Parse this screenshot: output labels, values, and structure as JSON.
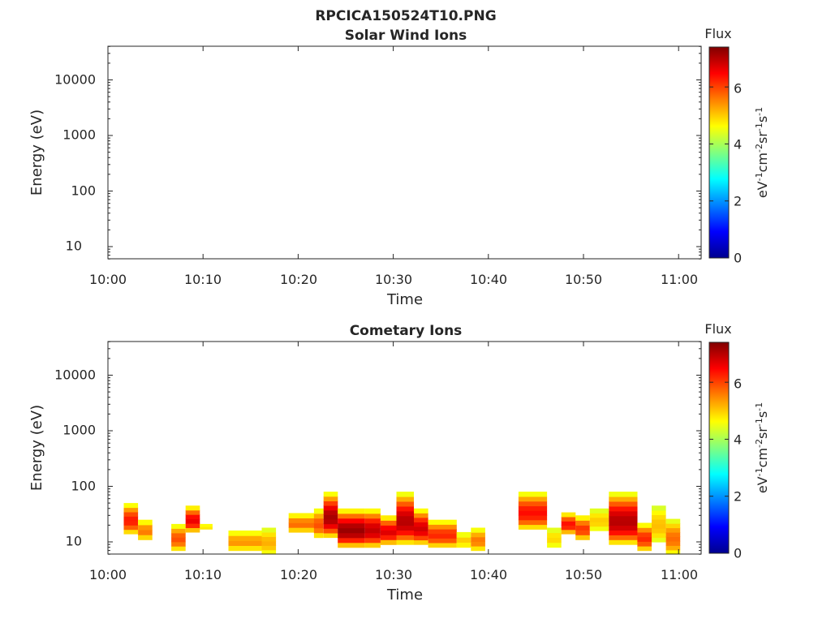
{
  "figure_title": "RPCICA150524T10.PNG",
  "chart_data": [
    {
      "type": "heatmap",
      "title": "Solar Wind Ions",
      "xlabel": "Time",
      "ylabel": "Energy (eV)",
      "x_ticks": [
        "10:00",
        "10:10",
        "10:20",
        "10:30",
        "10:40",
        "10:50",
        "11:00"
      ],
      "y_ticks": [
        "10",
        "100",
        "1000",
        "10000"
      ],
      "y_scale": "log",
      "ylim": [
        6,
        45000
      ],
      "xlim": [
        "10:00",
        "11:02"
      ],
      "colorbar": {
        "label": "Flux",
        "unit": "eV-1cm-2sr-1s-1",
        "range": [
          0,
          7.4
        ],
        "ticks": [
          "0",
          "2",
          "4",
          "6"
        ]
      },
      "cells": []
    },
    {
      "type": "heatmap",
      "title": "Cometary Ions",
      "xlabel": "Time",
      "ylabel": "Energy (eV)",
      "x_ticks": [
        "10:00",
        "10:10",
        "10:20",
        "10:30",
        "10:40",
        "10:50",
        "11:00"
      ],
      "y_ticks": [
        "10",
        "100",
        "1000",
        "10000"
      ],
      "y_scale": "log",
      "ylim": [
        6,
        45000
      ],
      "xlim": [
        "10:00",
        "11:02"
      ],
      "colorbar": {
        "label": "Flux",
        "unit": "eV-1cm-2sr-1s-1",
        "range": [
          0,
          7.4
        ],
        "ticks": [
          "0",
          "2",
          "4",
          "6"
        ]
      },
      "columns": [
        {
          "t0": "10:01:40",
          "t1": "10:03:10",
          "e_lo": 14,
          "e_hi": 50,
          "peak": 6.3
        },
        {
          "t0": "10:03:10",
          "t1": "10:04:40",
          "e_lo": 11,
          "e_hi": 25,
          "peak": 5.6
        },
        {
          "t0": "10:06:40",
          "t1": "10:08:10",
          "e_lo": 7,
          "e_hi": 21,
          "peak": 5.9
        },
        {
          "t0": "10:08:10",
          "t1": "10:09:40",
          "e_lo": 15,
          "e_hi": 45,
          "peak": 6.6
        },
        {
          "t0": "10:09:40",
          "t1": "10:11:00",
          "e_lo": 17,
          "e_hi": 21,
          "peak": 4.9
        },
        {
          "t0": "10:12:40",
          "t1": "10:16:10",
          "e_lo": 7,
          "e_hi": 16,
          "peak": 5.4
        },
        {
          "t0": "10:16:10",
          "t1": "10:17:40",
          "e_lo": 6,
          "e_hi": 18,
          "peak": 5.2
        },
        {
          "t0": "10:19:00",
          "t1": "10:21:40",
          "e_lo": 15,
          "e_hi": 33,
          "peak": 5.7
        },
        {
          "t0": "10:21:40",
          "t1": "10:22:40",
          "e_lo": 12,
          "e_hi": 40,
          "peak": 5.9
        },
        {
          "t0": "10:22:40",
          "t1": "10:24:10",
          "e_lo": 12,
          "e_hi": 80,
          "peak": 7.1
        },
        {
          "t0": "10:24:10",
          "t1": "10:27:00",
          "e_lo": 8,
          "e_hi": 40,
          "peak": 7.2
        },
        {
          "t0": "10:27:00",
          "t1": "10:28:40",
          "e_lo": 8,
          "e_hi": 40,
          "peak": 6.9
        },
        {
          "t0": "10:28:40",
          "t1": "10:30:20",
          "e_lo": 9,
          "e_hi": 30,
          "peak": 6.7
        },
        {
          "t0": "10:30:20",
          "t1": "10:32:10",
          "e_lo": 9,
          "e_hi": 80,
          "peak": 7.0
        },
        {
          "t0": "10:32:10",
          "t1": "10:33:40",
          "e_lo": 9,
          "e_hi": 40,
          "peak": 6.8
        },
        {
          "t0": "10:33:40",
          "t1": "10:36:40",
          "e_lo": 8,
          "e_hi": 25,
          "peak": 6.2
        },
        {
          "t0": "10:36:40",
          "t1": "10:38:10",
          "e_lo": 8,
          "e_hi": 15,
          "peak": 5.0
        },
        {
          "t0": "10:38:10",
          "t1": "10:39:40",
          "e_lo": 7,
          "e_hi": 18,
          "peak": 5.6
        },
        {
          "t0": "10:43:10",
          "t1": "10:46:10",
          "e_lo": 17,
          "e_hi": 80,
          "peak": 6.4
        },
        {
          "t0": "10:46:10",
          "t1": "10:47:40",
          "e_lo": 8,
          "e_hi": 18,
          "peak": 4.9
        },
        {
          "t0": "10:47:40",
          "t1": "10:49:10",
          "e_lo": 14,
          "e_hi": 34,
          "peak": 6.4
        },
        {
          "t0": "10:49:10",
          "t1": "10:50:40",
          "e_lo": 11,
          "e_hi": 30,
          "peak": 6.1
        },
        {
          "t0": "10:50:40",
          "t1": "10:52:40",
          "e_lo": 16,
          "e_hi": 40,
          "peak": 5.0
        },
        {
          "t0": "10:52:40",
          "t1": "10:55:40",
          "e_lo": 9,
          "e_hi": 80,
          "peak": 7.0
        },
        {
          "t0": "10:55:40",
          "t1": "10:57:10",
          "e_lo": 7,
          "e_hi": 22,
          "peak": 6.2
        },
        {
          "t0": "10:57:10",
          "t1": "10:58:40",
          "e_lo": 10,
          "e_hi": 45,
          "peak": 5.1
        },
        {
          "t0": "10:58:40",
          "t1": "11:00:10",
          "e_lo": 6,
          "e_hi": 26,
          "peak": 5.7
        }
      ]
    }
  ]
}
